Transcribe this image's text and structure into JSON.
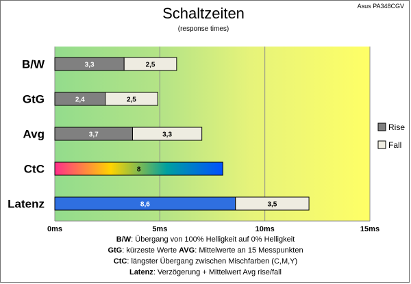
{
  "chart_data": {
    "type": "bar",
    "orientation": "horizontal",
    "stacked": true,
    "title": "Schaltzeiten",
    "subtitle": "(response times)",
    "model": "Asus PA348CGV",
    "categories": [
      "B/W",
      "GtG",
      "Avg",
      "CtC",
      "Latenz"
    ],
    "series": [
      {
        "name": "Rise",
        "values": [
          3.3,
          2.4,
          3.7,
          null,
          null
        ],
        "color": "#808080"
      },
      {
        "name": "Fall",
        "values": [
          2.5,
          2.5,
          3.3,
          null,
          3.5
        ],
        "color": "#eeece1"
      }
    ],
    "ctc": {
      "value": 8,
      "label": "8",
      "gradient": [
        "#ff2e8a",
        "#ffd400",
        "#00a0a0",
        "#0050ff"
      ]
    },
    "latency": {
      "value": 8.6,
      "label": "8,6",
      "color": "#2f6fe0"
    },
    "data_labels": {
      "B/W": [
        "3,3",
        "2,5"
      ],
      "GtG": [
        "2,4",
        "2,5"
      ],
      "Avg": [
        "3,7",
        "3,3"
      ],
      "CtC": [
        "8"
      ],
      "Latenz": [
        "8,6",
        "3,5"
      ]
    },
    "xlim": [
      0,
      15
    ],
    "xticks": [
      0,
      5,
      10,
      15
    ],
    "xtick_labels": [
      "0ms",
      "5ms",
      "10ms",
      "15ms"
    ],
    "grid": true,
    "legend": {
      "position": "right",
      "entries": [
        "Rise",
        "Fall"
      ]
    },
    "background_gradient": [
      "#93dc8c",
      "#ffff66"
    ]
  },
  "notes": [
    {
      "key": "B/W",
      "text": ":  Übergang von 100% Helligkeit auf 0% Helligkeit"
    },
    {
      "key": "GtG",
      "text": ": kürzeste  Werte",
      "key2": "AVG",
      "text2": ": Mittelwerte  an 15 Messpunkten"
    },
    {
      "key": "CtC",
      "text": ": längster Übergang  zwischen Mischfarben  (C,M,Y)"
    },
    {
      "key": "Latenz",
      "text": ": Verzögerung  + Mittelwert  Avg rise/fall"
    }
  ]
}
